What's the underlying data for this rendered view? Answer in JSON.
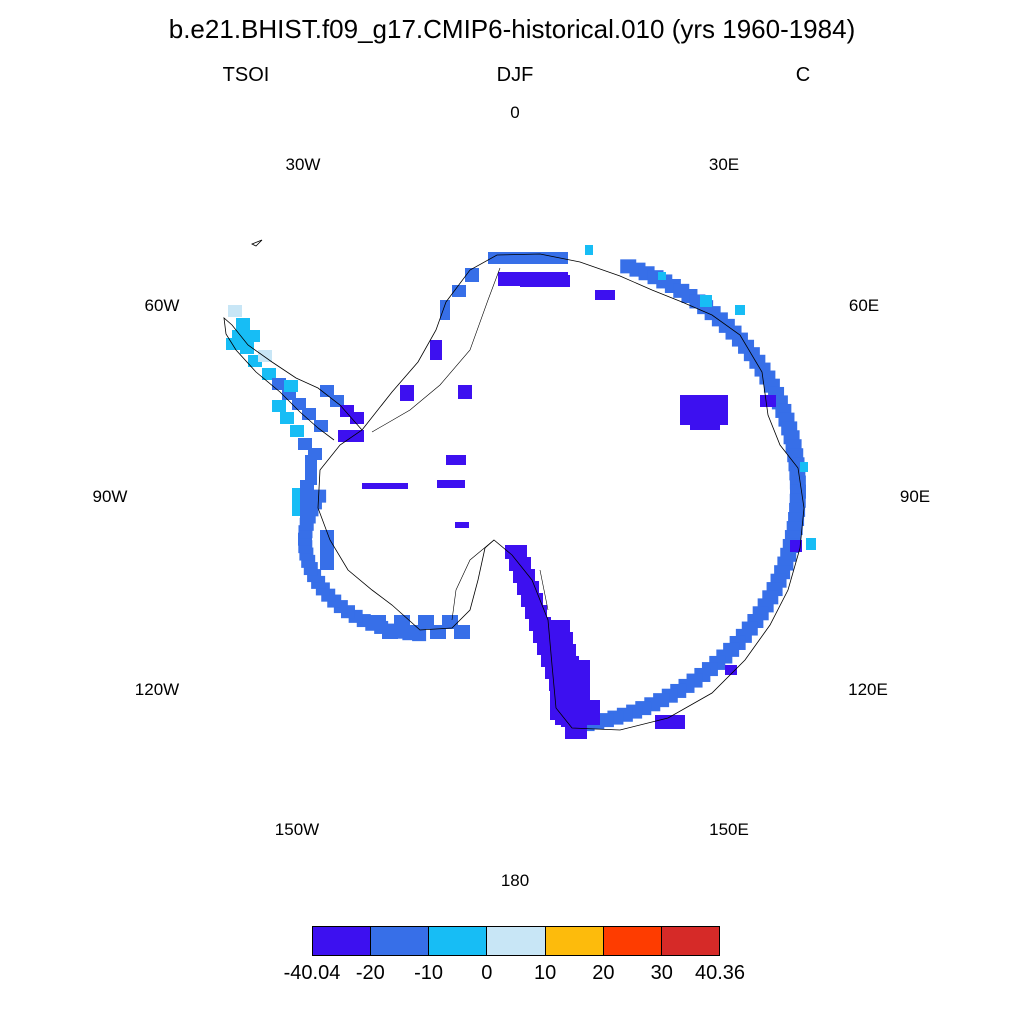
{
  "title": "b.e21.BHIST.f09_g17.CMIP6-historical.010 (yrs 1960-1984)",
  "left_string": "TSOI",
  "center_string": "DJF",
  "right_string": "C",
  "longitude_labels": {
    "lon_0": "0",
    "lon_30e": "30E",
    "lon_60e": "60E",
    "lon_90e": "90E",
    "lon_120e": "120E",
    "lon_150e": "150E",
    "lon_180": "180",
    "lon_150w": "150W",
    "lon_120w": "120W",
    "lon_90w": "90W",
    "lon_60w": "60W",
    "lon_30w": "30W"
  },
  "colorbar": {
    "colors": [
      "#3d10f0",
      "#376fe8",
      "#17bdf5",
      "#c8e6f6",
      "#fdbb0c",
      "#fe3c00",
      "#d62a28"
    ],
    "labels": [
      "-40.04",
      "-20",
      "-10",
      "0",
      "10",
      "20",
      "30",
      "40.36"
    ]
  },
  "legend_colors": {
    "very_cold": "#3d10f0",
    "cold": "#376fe8",
    "cool": "#17bdf5",
    "near_zero": "#c8e6f6"
  }
}
